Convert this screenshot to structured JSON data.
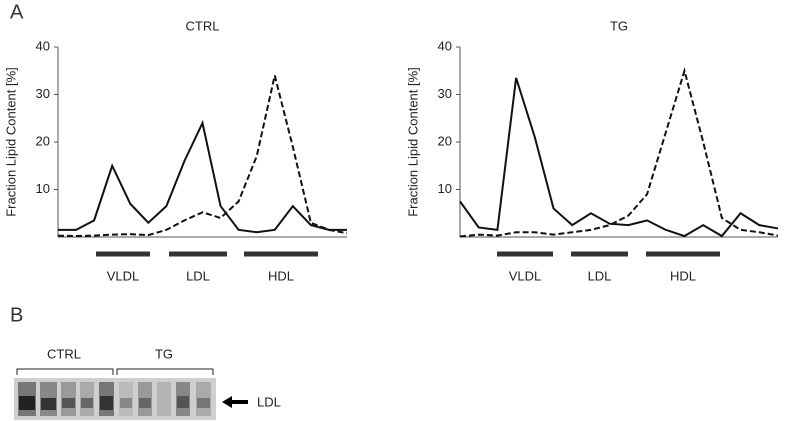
{
  "panels": [
    "A",
    "B"
  ],
  "chart_data": [
    {
      "type": "line",
      "title": "CTRL",
      "ylabel": "Fraction Lipid Content [%]",
      "categories": [
        null,
        null,
        null,
        null,
        null,
        null,
        null,
        null,
        null,
        null,
        null,
        null,
        null,
        null,
        null,
        null,
        null
      ],
      "ylim": [
        0,
        40
      ],
      "yticks": [
        10,
        20,
        30,
        40
      ],
      "regions": [
        "VLDL",
        "LDL",
        "HDL"
      ],
      "series": [
        {
          "color": "#111111",
          "dash": false,
          "values": [
            1.5,
            1.5,
            3.5,
            15,
            7,
            3,
            6.5,
            16,
            24,
            6.5,
            1.5,
            1,
            1.5,
            6.5,
            2.5,
            1.5,
            1.5
          ]
        },
        {
          "color": "#111111",
          "dash": true,
          "values": [
            0.3,
            0.2,
            0.3,
            0.5,
            0.6,
            0.4,
            1.5,
            3.5,
            5.2,
            4,
            7.5,
            17,
            34,
            19,
            3,
            1.5,
            0.8
          ]
        }
      ]
    },
    {
      "type": "line",
      "title": "TG",
      "ylabel": "Fraction Lipid Content [%]",
      "categories": [
        null,
        null,
        null,
        null,
        null,
        null,
        null,
        null,
        null,
        null,
        null,
        null,
        null,
        null,
        null,
        null,
        null,
        null
      ],
      "ylim": [
        0,
        40
      ],
      "yticks": [
        10,
        20,
        30,
        40
      ],
      "regions": [
        "VLDL",
        "LDL",
        "HDL"
      ],
      "series": [
        {
          "color": "#111111",
          "dash": false,
          "values": [
            7.5,
            2,
            1.5,
            33.5,
            21,
            6,
            2.5,
            5,
            2.8,
            2.5,
            3.5,
            1.5,
            0.2,
            2.5,
            0.2,
            5,
            2.5,
            1.8
          ]
        },
        {
          "color": "#111111",
          "dash": true,
          "values": [
            0.1,
            0.5,
            0.3,
            1,
            1,
            0.5,
            1,
            1.5,
            2.5,
            4.5,
            9,
            22,
            35,
            20,
            4,
            1.5,
            1,
            0.3
          ]
        }
      ]
    }
  ],
  "blot": {
    "groups": [
      "CTRL",
      "TG"
    ],
    "band_label": "LDL"
  }
}
